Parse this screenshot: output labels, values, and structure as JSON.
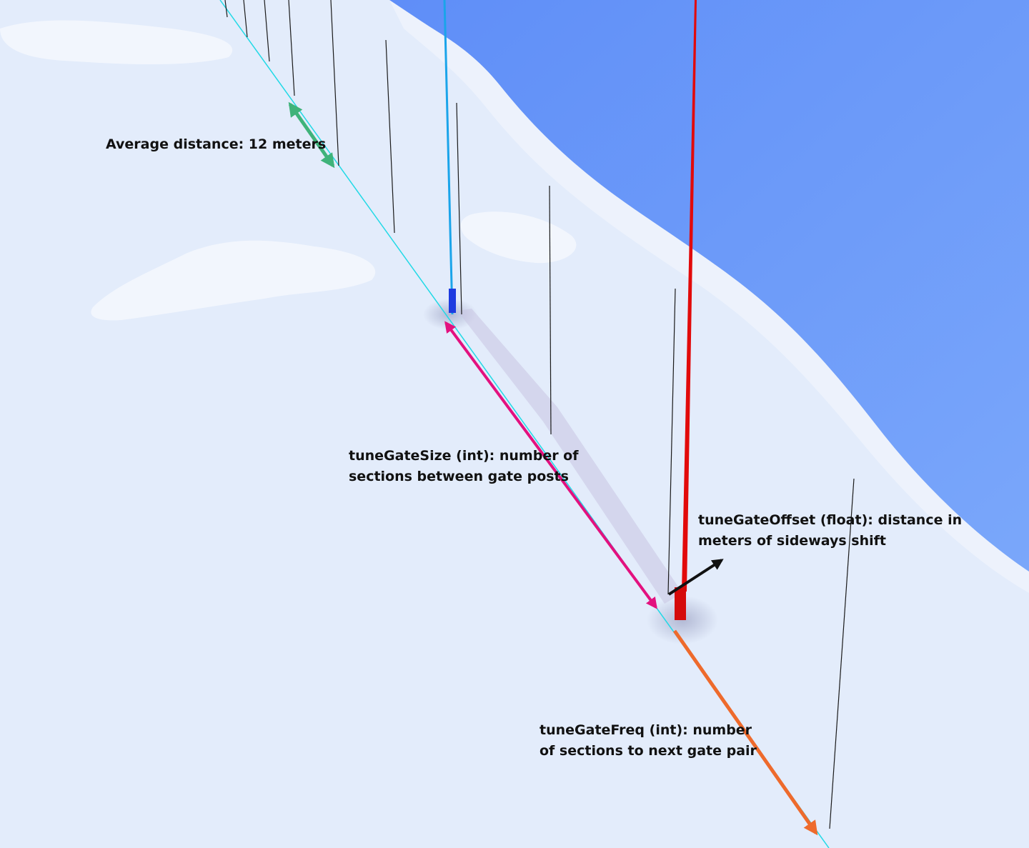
{
  "annotations": {
    "average_distance": "Average distance: 12 meters",
    "gate_size": {
      "line1": "tuneGateSize (int): number of",
      "line2": "sections between gate posts"
    },
    "gate_offset": {
      "line1": "tuneGateOffset (float): distance in",
      "line2": "meters of sideways shift"
    },
    "gate_freq": {
      "line1": "tuneGateFreq (int): number",
      "line2": "of sections to next gate pair"
    }
  },
  "colors": {
    "snow": "#e3ecfb",
    "sky": "#6f9cf8",
    "track_line": "#21d9e6",
    "left_gate_post": "#1aa4ea",
    "right_gate_post": "#e20a0a",
    "average_distance_arrow": "#3fb37a",
    "gate_size_arrow": "#e3117f",
    "gate_offset_arrow": "#111111",
    "gate_freq_arrow": "#ee6a2c",
    "pole": "#1a1a1a"
  }
}
